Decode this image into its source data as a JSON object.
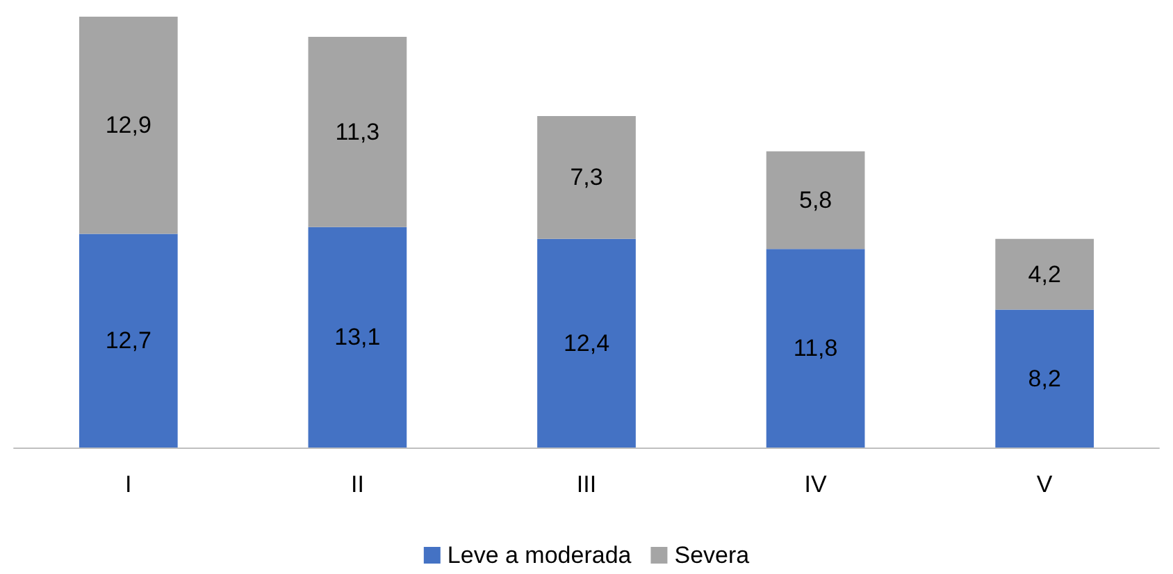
{
  "chart_data": {
    "type": "bar",
    "stacked": true,
    "legend": "bottom",
    "categories": [
      "I",
      "II",
      "III",
      "IV",
      "V"
    ],
    "series": [
      {
        "name": "Leve a moderada",
        "color": "#4472c4",
        "values": [
          12.7,
          13.1,
          12.4,
          11.8,
          8.2
        ],
        "value_labels": [
          "12,7",
          "13,1",
          "12,4",
          "11,8",
          "8,2"
        ]
      },
      {
        "name": "Severa",
        "color": "#a5a5a5",
        "values": [
          12.9,
          11.3,
          7.3,
          5.8,
          4.2
        ],
        "value_labels": [
          "12,9",
          "11,3",
          "7,3",
          "5,8",
          "4,2"
        ]
      }
    ]
  }
}
